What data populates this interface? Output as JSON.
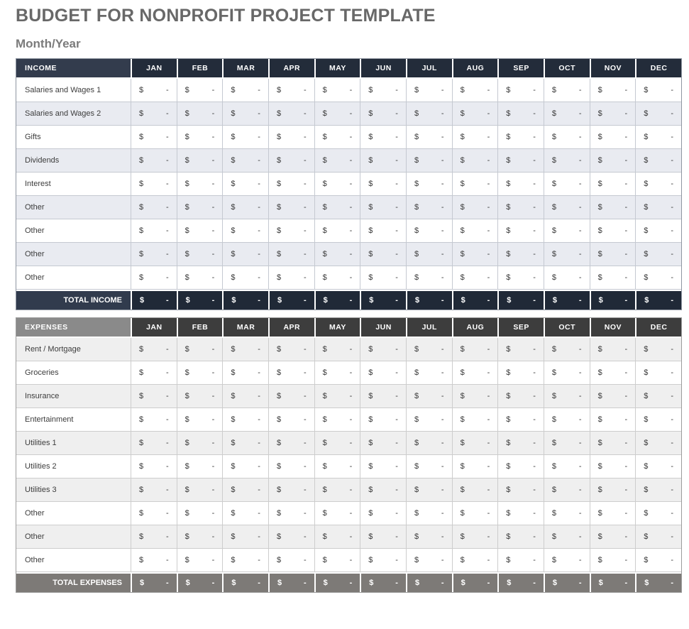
{
  "page": {
    "title": "BUDGET FOR NONPROFIT PROJECT TEMPLATE",
    "subtitle": "Month/Year"
  },
  "months": [
    "JAN",
    "FEB",
    "MAR",
    "APR",
    "MAY",
    "JUN",
    "JUL",
    "AUG",
    "SEP",
    "OCT",
    "NOV",
    "DEC"
  ],
  "placeholder": {
    "currency": "$",
    "amount": "-"
  },
  "income": {
    "header_label": "INCOME",
    "rows": [
      "Salaries and Wages 1",
      "Salaries and Wages 2",
      "Gifts",
      "Dividends",
      "Interest",
      "Other",
      "Other",
      "Other",
      "Other"
    ],
    "total_label": "TOTAL INCOME"
  },
  "expenses": {
    "header_label": "EXPENSES",
    "rows": [
      "Rent / Mortgage",
      "Groceries",
      "Insurance",
      "Entertainment",
      "Utilities 1",
      "Utilities 2",
      "Utilities 3",
      "Other",
      "Other",
      "Other"
    ],
    "total_label": "TOTAL EXPENSES"
  },
  "colors": {
    "title_color": "#686868",
    "subtitle_color": "#7B7B7B",
    "cell_text": "#3C3C3C",
    "income_header_label_bg": "#333C4D",
    "income_header_month_bg": "#232C3A",
    "income_total_label_bg": "#313B4D",
    "income_total_month_bg": "#202937",
    "income_stripe": "#E9EBF1",
    "income_grid": "#C5C9D1",
    "income_outer": "#8F96A1",
    "expenses_header_label_bg": "#8A8A8A",
    "expenses_header_month_bg": "#3D3D3D",
    "expenses_total_label_bg": "#7D7A77",
    "expenses_total_month_bg": "#7D7A77",
    "expenses_stripe": "#EFEFEF",
    "expenses_grid": "#CDCDCD",
    "expenses_outer": "#9C9C9C"
  }
}
